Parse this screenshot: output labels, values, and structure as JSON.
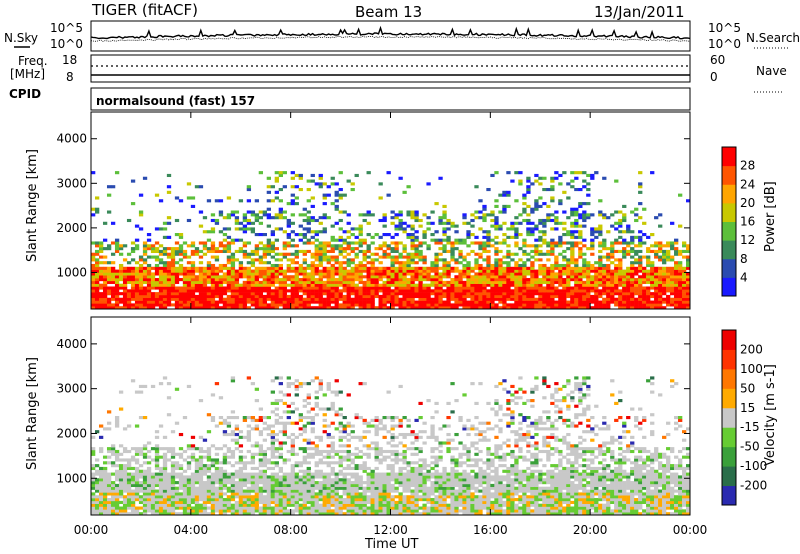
{
  "header": {
    "radar_title": "TIGER (fitACF)",
    "beam": "Beam 13",
    "date": "13/Jan/2011"
  },
  "params": {
    "nsky_label": "N.Sky",
    "nsearch_label": "N.Search",
    "freq_label": "Freq.",
    "freq_unit": "[MHz]",
    "nave_label": "Nave",
    "cpid_label": "CPID",
    "cpid_value": "normalsound (fast) 157",
    "noise_ticks": [
      "10^5",
      "10^0"
    ],
    "freq_ticks": [
      "18",
      "8"
    ],
    "nave_ticks": [
      "60",
      "0"
    ]
  },
  "chart_data": [
    {
      "type": "heatmap",
      "name": "power",
      "xlabel": "",
      "ylabel": "Slant Range [km]",
      "xlim": [
        0,
        24
      ],
      "ylim": [
        180,
        4600
      ],
      "yticks": [
        1000,
        2000,
        3000,
        4000
      ],
      "colorbar_label": "Power [dB]",
      "colorbar_ticks": [
        "28",
        "24",
        "20",
        "16",
        "12",
        "8",
        "4"
      ],
      "colorscale": [
        "#1a1aff",
        "#2a4bb0",
        "#3a8a5a",
        "#5cbf3a",
        "#c8c800",
        "#ffa500",
        "#ff5500",
        "#ff0000"
      ]
    },
    {
      "type": "heatmap",
      "name": "velocity",
      "xlabel": "Time UT",
      "ylabel": "Slant Range [km]",
      "xlim": [
        0,
        24
      ],
      "ylim": [
        180,
        4600
      ],
      "yticks": [
        1000,
        2000,
        3000,
        4000
      ],
      "xticks": [
        "00:00",
        "04:00",
        "08:00",
        "12:00",
        "16:00",
        "20:00",
        "00:00"
      ],
      "colorbar_label": "Velocity [m s-1]",
      "colorbar_ticks": [
        "200",
        "100",
        "50",
        "15",
        "-15",
        "-50",
        "-100",
        "-200"
      ],
      "colorscale": [
        "#2a2ab0",
        "#2a6e4a",
        "#3aa03a",
        "#66cc33",
        "#c8c8c8",
        "#ffaa00",
        "#ff7700",
        "#ff3300",
        "#ee0000"
      ]
    }
  ]
}
